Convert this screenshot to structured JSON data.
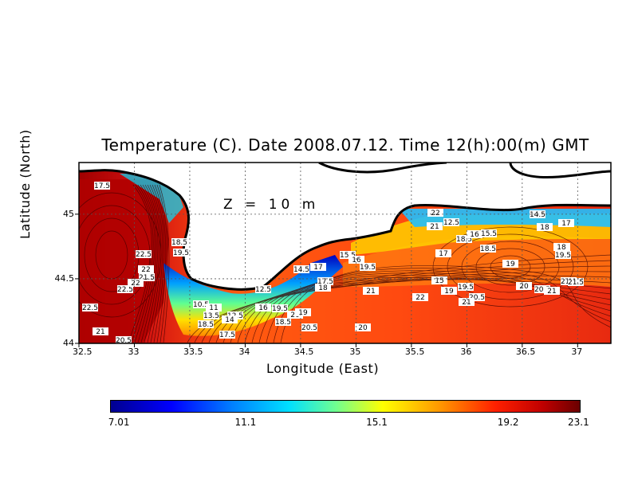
{
  "title": "Temperature (C). Date 2008.07.12. Time 12(h):00(m) GMT",
  "depth_label": "Z = 10 m",
  "x_axis": {
    "label": "Longitude (East)",
    "ticks": [
      "32.5",
      "33",
      "33.5",
      "34",
      "34.5",
      "35",
      "35.5",
      "36",
      "36.5",
      "37"
    ],
    "range": [
      32.5,
      37.3
    ]
  },
  "y_axis": {
    "label": "Latitude (North)",
    "ticks": [
      "44",
      "44.5",
      "45"
    ],
    "range": [
      44.0,
      45.4
    ]
  },
  "colorbar": {
    "min_label": "7.01",
    "labels": [
      "7.01",
      "11.1",
      "15.1",
      "19.2",
      "23.1"
    ],
    "colors": [
      "#00008f",
      "#0000ff",
      "#00e0ff",
      "#ffff00",
      "#ff9900",
      "#ff2000",
      "#6a0000"
    ]
  },
  "contour_labels": [
    "17.5",
    "22.5",
    "22",
    "21.5",
    "22.5",
    "22",
    "18.5",
    "19.5",
    "22.5",
    "21",
    "20.5",
    "10.5",
    "11",
    "13.5",
    "12.5",
    "18.5",
    "14",
    "17.5",
    "12.5",
    "16",
    "18.5",
    "19.5",
    "20",
    "20.5",
    "19",
    "14.5",
    "17",
    "17.5",
    "18",
    "15.5",
    "16",
    "19.5",
    "21",
    "20",
    "21",
    "22",
    "12.5",
    "18.5",
    "16",
    "17",
    "18.5",
    "15",
    "19",
    "19.5",
    "19",
    "20",
    "20.5",
    "21",
    "22",
    "21.5",
    "14.5",
    "18",
    "17",
    "15.5",
    "19.5",
    "21.5",
    "20.5",
    "21",
    "19",
    "18"
  ]
}
